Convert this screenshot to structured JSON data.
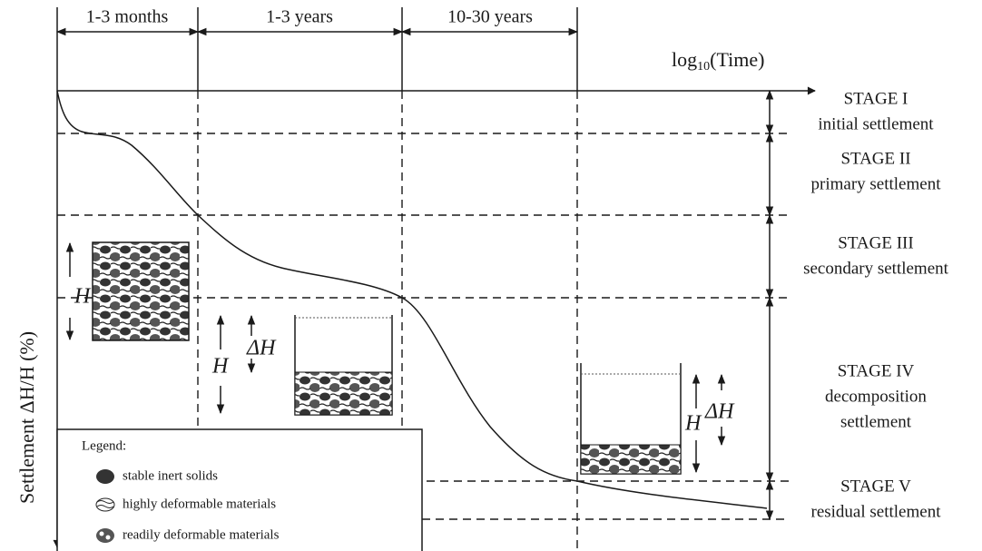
{
  "time_periods": [
    "1-3 months",
    "1-3 years",
    "10-30 years"
  ],
  "x_axis_label": {
    "base": "log",
    "subscript": "10",
    "rest": "(Time)"
  },
  "y_axis_label": "Settlement ΔH/H (%)",
  "stages": [
    {
      "name": "STAGE I",
      "description": [
        "initial settlement"
      ]
    },
    {
      "name": "STAGE II",
      "description": [
        "primary settlement"
      ]
    },
    {
      "name": "STAGE III",
      "description": [
        "secondary settlement"
      ]
    },
    {
      "name": "STAGE IV",
      "description": [
        "decomposition",
        "settlement"
      ]
    },
    {
      "name": "STAGE V",
      "description": [
        "residual settlement"
      ]
    }
  ],
  "legend": {
    "title": "Legend:",
    "items": [
      "stable inert solids",
      "highly deformable materials",
      "readily deformable materials"
    ]
  },
  "annotations": [
    "H",
    "H",
    "ΔH",
    "H",
    "ΔH"
  ]
}
